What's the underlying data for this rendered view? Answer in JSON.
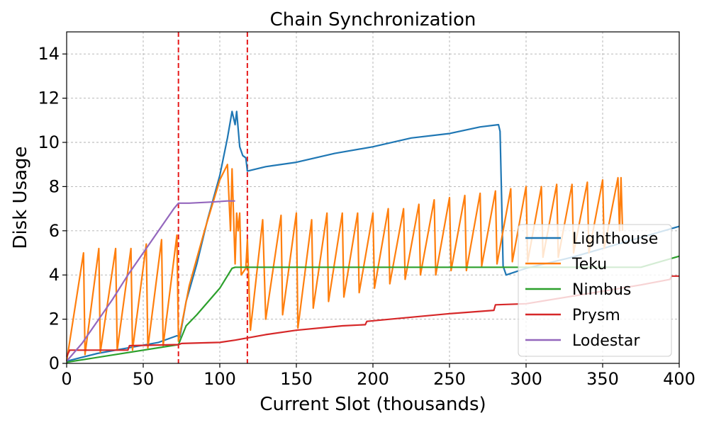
{
  "chart_data": {
    "type": "line",
    "title": "Chain Synchronization",
    "xlabel": "Current Slot (thousands)",
    "ylabel": "Disk Usage",
    "xlim": [
      0,
      400
    ],
    "ylim": [
      0,
      15
    ],
    "xticks": [
      0,
      50,
      100,
      150,
      200,
      250,
      300,
      350,
      400
    ],
    "yticks": [
      0,
      2,
      4,
      6,
      8,
      10,
      12,
      14
    ],
    "grid": true,
    "legend_position": "lower-right",
    "vlines": [
      {
        "x": 73,
        "color": "#e6191a",
        "style": "dashed"
      },
      {
        "x": 118,
        "color": "#e6191a",
        "style": "dashed"
      }
    ],
    "series": [
      {
        "name": "Lighthouse",
        "color": "#1f77b4",
        "points": [
          [
            0,
            0.1
          ],
          [
            20,
            0.45
          ],
          [
            40,
            0.7
          ],
          [
            60,
            0.95
          ],
          [
            72,
            1.25
          ],
          [
            74,
            1.2
          ],
          [
            78,
            2.8
          ],
          [
            85,
            4.5
          ],
          [
            92,
            6.5
          ],
          [
            100,
            8.5
          ],
          [
            105,
            10.2
          ],
          [
            108,
            11.4
          ],
          [
            110,
            10.8
          ],
          [
            111,
            11.4
          ],
          [
            113,
            9.8
          ],
          [
            115,
            9.4
          ],
          [
            117,
            9.3
          ],
          [
            118,
            8.7
          ],
          [
            130,
            8.9
          ],
          [
            150,
            9.1
          ],
          [
            175,
            9.5
          ],
          [
            200,
            9.8
          ],
          [
            225,
            10.2
          ],
          [
            250,
            10.4
          ],
          [
            270,
            10.7
          ],
          [
            282,
            10.8
          ],
          [
            283,
            10.5
          ],
          [
            284,
            7.6
          ],
          [
            285,
            4.4
          ],
          [
            287,
            4.0
          ],
          [
            300,
            4.3
          ],
          [
            330,
            4.8
          ],
          [
            350,
            5.2
          ],
          [
            375,
            5.7
          ],
          [
            395,
            6.1
          ],
          [
            400,
            6.2
          ]
        ]
      },
      {
        "name": "Teku",
        "color": "#ff7f0e",
        "points": [
          [
            0,
            0.1
          ],
          [
            11,
            5.0
          ],
          [
            12,
            0.4
          ],
          [
            21,
            5.2
          ],
          [
            22,
            0.5
          ],
          [
            32,
            5.2
          ],
          [
            33,
            0.6
          ],
          [
            42,
            5.2
          ],
          [
            43,
            0.6
          ],
          [
            52,
            5.4
          ],
          [
            53,
            0.7
          ],
          [
            62,
            5.6
          ],
          [
            63,
            0.8
          ],
          [
            72,
            5.8
          ],
          [
            73,
            1.0
          ],
          [
            80,
            3.5
          ],
          [
            90,
            6.0
          ],
          [
            100,
            8.3
          ],
          [
            105,
            9.0
          ],
          [
            107,
            6.0
          ],
          [
            108,
            8.8
          ],
          [
            110,
            4.5
          ],
          [
            111,
            6.8
          ],
          [
            112,
            6.0
          ],
          [
            113,
            6.8
          ],
          [
            114,
            4.0
          ],
          [
            117,
            4.3
          ],
          [
            118,
            5.6
          ],
          [
            120,
            1.5
          ],
          [
            128,
            6.5
          ],
          [
            130,
            2.0
          ],
          [
            140,
            6.7
          ],
          [
            141,
            2.2
          ],
          [
            150,
            6.8
          ],
          [
            151,
            1.6
          ],
          [
            160,
            6.5
          ],
          [
            161,
            2.5
          ],
          [
            170,
            6.8
          ],
          [
            171,
            2.8
          ],
          [
            180,
            6.8
          ],
          [
            181,
            3.0
          ],
          [
            190,
            6.8
          ],
          [
            191,
            3.2
          ],
          [
            200,
            6.8
          ],
          [
            201,
            3.4
          ],
          [
            210,
            7.0
          ],
          [
            211,
            3.6
          ],
          [
            220,
            7.0
          ],
          [
            221,
            3.8
          ],
          [
            230,
            7.2
          ],
          [
            231,
            4.0
          ],
          [
            240,
            7.4
          ],
          [
            241,
            4.0
          ],
          [
            250,
            7.5
          ],
          [
            251,
            4.2
          ],
          [
            260,
            7.6
          ],
          [
            261,
            4.2
          ],
          [
            270,
            7.7
          ],
          [
            271,
            4.4
          ],
          [
            280,
            7.8
          ],
          [
            281,
            4.5
          ],
          [
            290,
            7.9
          ],
          [
            291,
            4.6
          ],
          [
            300,
            8.0
          ],
          [
            301,
            4.6
          ],
          [
            310,
            8.0
          ],
          [
            311,
            4.8
          ],
          [
            320,
            8.1
          ],
          [
            321,
            4.8
          ],
          [
            330,
            8.1
          ],
          [
            331,
            5.0
          ],
          [
            340,
            8.2
          ],
          [
            341,
            5.0
          ],
          [
            350,
            8.3
          ],
          [
            351,
            5.2
          ],
          [
            360,
            8.4
          ],
          [
            361,
            6.0
          ],
          [
            362,
            8.4
          ],
          [
            363,
            6.0
          ]
        ]
      },
      {
        "name": "Nimbus",
        "color": "#2ca02c",
        "points": [
          [
            0,
            0.05
          ],
          [
            73,
            0.85
          ],
          [
            78,
            1.7
          ],
          [
            85,
            2.2
          ],
          [
            100,
            3.4
          ],
          [
            108,
            4.3
          ],
          [
            110,
            4.35
          ],
          [
            150,
            4.35
          ],
          [
            200,
            4.35
          ],
          [
            250,
            4.35
          ],
          [
            300,
            4.35
          ],
          [
            375,
            4.35
          ],
          [
            400,
            4.85
          ]
        ]
      },
      {
        "name": "Prysm",
        "color": "#d62728",
        "points": [
          [
            0,
            0.3
          ],
          [
            2,
            0.6
          ],
          [
            40,
            0.6
          ],
          [
            41,
            0.8
          ],
          [
            73,
            0.85
          ],
          [
            75,
            0.9
          ],
          [
            100,
            0.95
          ],
          [
            110,
            1.05
          ],
          [
            130,
            1.3
          ],
          [
            150,
            1.5
          ],
          [
            180,
            1.7
          ],
          [
            195,
            1.75
          ],
          [
            196,
            1.9
          ],
          [
            250,
            2.25
          ],
          [
            279,
            2.4
          ],
          [
            280,
            2.65
          ],
          [
            300,
            2.7
          ],
          [
            340,
            3.15
          ],
          [
            375,
            3.55
          ],
          [
            394,
            3.8
          ],
          [
            395,
            3.95
          ],
          [
            400,
            3.95
          ]
        ]
      },
      {
        "name": "Lodestar",
        "color": "#9467bd",
        "points": [
          [
            0,
            0.1
          ],
          [
            10,
            0.9
          ],
          [
            20,
            1.9
          ],
          [
            30,
            2.9
          ],
          [
            40,
            4.0
          ],
          [
            50,
            5.0
          ],
          [
            60,
            6.0
          ],
          [
            70,
            7.0
          ],
          [
            73,
            7.25
          ],
          [
            80,
            7.25
          ],
          [
            95,
            7.3
          ],
          [
            105,
            7.35
          ],
          [
            110,
            7.35
          ]
        ]
      }
    ]
  }
}
